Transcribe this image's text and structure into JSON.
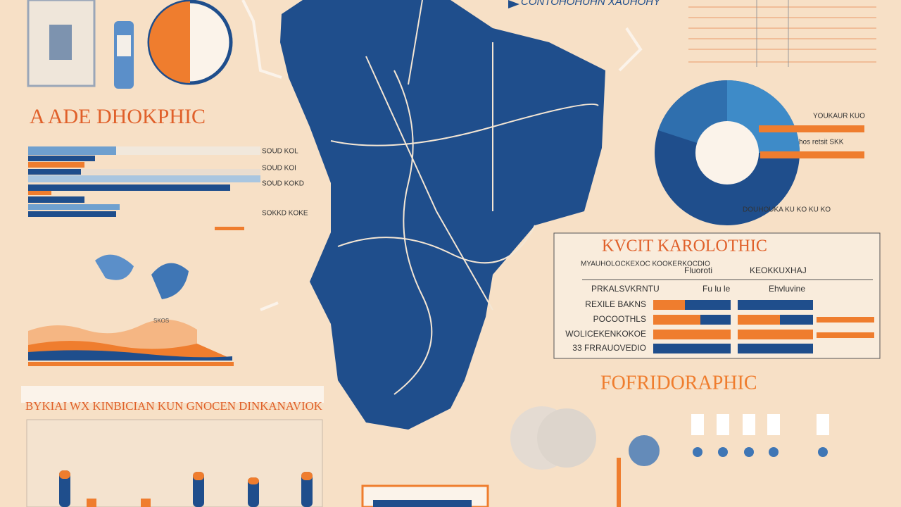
{
  "top_caption": "CONTOHOHUHN XAUHOHY",
  "left_panel": {
    "title": "A ADE DHOKPHIC",
    "bar_labels": [
      "SOUD KOL",
      "SOUD KOI",
      "SOUD KOKD",
      "SOKKD KOKE"
    ],
    "small_label": "SKOS"
  },
  "donut_panel": {
    "labels": [
      "YOUKAUR KUO",
      "hos retsit SKK",
      "DOUHOUKA KU KO KU KO"
    ]
  },
  "table": {
    "title": "KVCIT KAROLOTHIC",
    "header": [
      "MYAUHOLOCKEXOC KOOKERKOCDIO",
      "Fluoroti",
      "KEOKKUXHAJ"
    ],
    "subheader": [
      "PRKALSVKRNTU",
      "Fu lu le",
      "Ehvluvine"
    ],
    "rows": [
      "REXILE BAKNS",
      "POCOOTHLS",
      "WOLICEKENKOKOE",
      "33 FRRAUOVEDIO"
    ]
  },
  "lower_right_title": "FOFRIDORAPHIC",
  "bottom_left_title": "BYKIAI WX KINBICIAN KUN GNOCEN DINKANAVIOK"
}
